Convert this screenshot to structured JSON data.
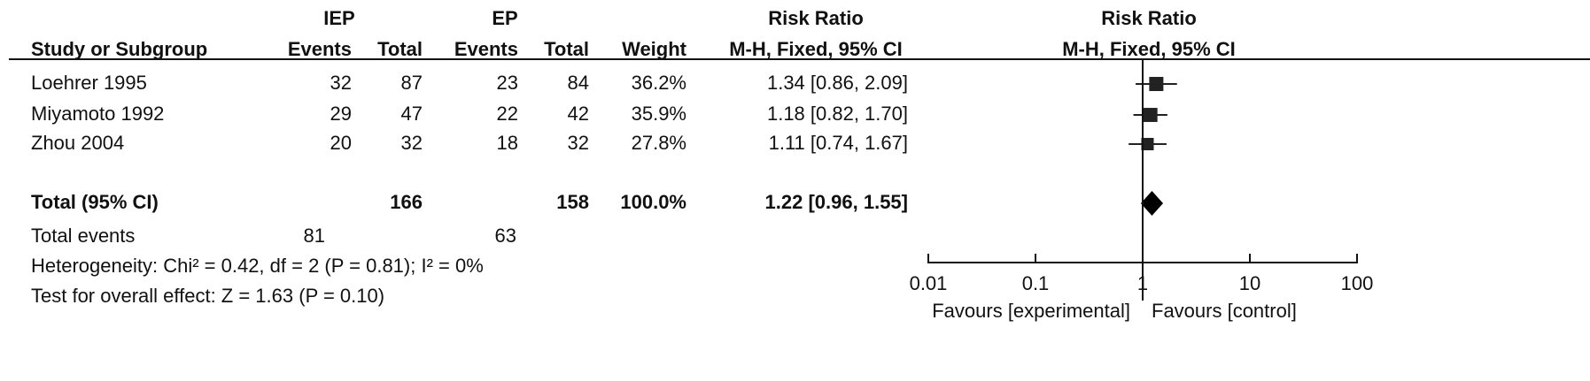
{
  "chart_data": {
    "type": "forest",
    "group_headers": {
      "iep": "IEP",
      "ep": "EP",
      "rr": "Risk Ratio"
    },
    "columns": {
      "study": "Study or Subgroup",
      "iep_events": "Events",
      "iep_total": "Total",
      "ep_events": "Events",
      "ep_total": "Total",
      "weight": "Weight",
      "rr": "M-H, Fixed, 95% CI"
    },
    "plot_title": "Risk Ratio",
    "plot_subtitle": "M-H, Fixed, 95% CI",
    "studies": [
      {
        "name": "Loehrer 1995",
        "iep_events": 32,
        "iep_total": 87,
        "ep_events": 23,
        "ep_total": 84,
        "weight": 36.2,
        "weight_label": "36.2%",
        "rr": 1.34,
        "ci_low": 0.86,
        "ci_high": 2.09,
        "rr_label": "1.34 [0.86, 2.09]"
      },
      {
        "name": "Miyamoto 1992",
        "iep_events": 29,
        "iep_total": 47,
        "ep_events": 22,
        "ep_total": 42,
        "weight": 35.9,
        "weight_label": "35.9%",
        "rr": 1.18,
        "ci_low": 0.82,
        "ci_high": 1.7,
        "rr_label": "1.18 [0.82, 1.70]"
      },
      {
        "name": "Zhou 2004",
        "iep_events": 20,
        "iep_total": 32,
        "ep_events": 18,
        "ep_total": 32,
        "weight": 27.8,
        "weight_label": "27.8%",
        "rr": 1.11,
        "ci_low": 0.74,
        "ci_high": 1.67,
        "rr_label": "1.11 [0.74, 1.67]"
      }
    ],
    "total": {
      "name": "Total (95% CI)",
      "iep_total": 166,
      "ep_total": 158,
      "weight": 100.0,
      "weight_label": "100.0%",
      "rr": 1.22,
      "ci_low": 0.96,
      "ci_high": 1.55,
      "rr_label": "1.22 [0.96, 1.55]"
    },
    "total_events": {
      "name": "Total events",
      "iep": 81,
      "ep": 63
    },
    "heterogeneity": "Heterogeneity: Chi² = 0.42, df = 2 (P = 0.81); I² = 0%",
    "overall_effect": "Test for overall effect: Z = 1.63 (P = 0.10)",
    "log_scale": true,
    "xlim": [
      0.01,
      100
    ],
    "xticks": [
      0.01,
      0.1,
      1,
      10,
      100
    ],
    "xlabel_left": "Favours [experimental]",
    "xlabel_right": "Favours [control]",
    "color": "#222222"
  }
}
